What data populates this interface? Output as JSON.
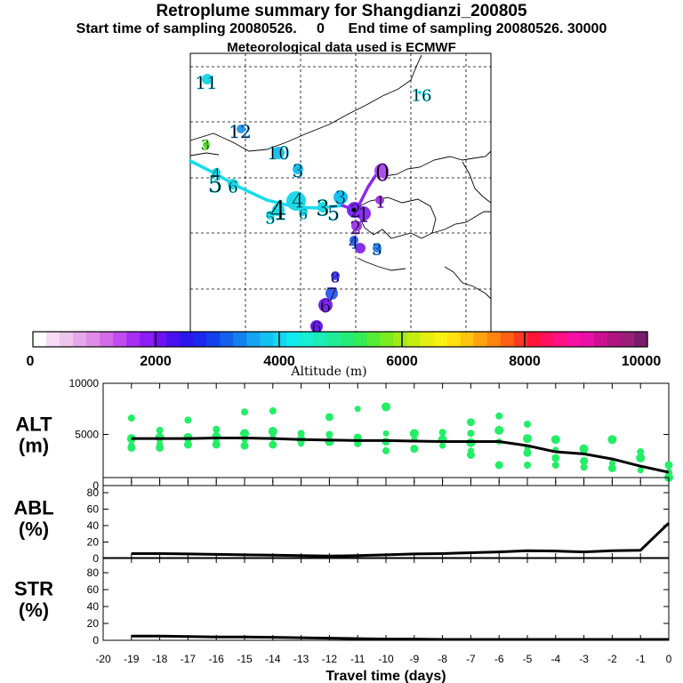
{
  "header": {
    "title": "Retroplume summary for Shangdianzi_200805",
    "sampling_line": "Start time of sampling 20080526.     0      End time of sampling 20080526. 30000",
    "met_line": "Meteorological data used is ECMWF"
  },
  "colorbar": {
    "ticks": [
      "0",
      "2000",
      "4000",
      "6000",
      "8000",
      "10000"
    ],
    "label": "Altitude (m)",
    "colors": [
      "#ffffff",
      "#f6dcf6",
      "#eec5ee",
      "#e6a8ec",
      "#df8de8",
      "#d36ce8",
      "#c24cef",
      "#a72ff2",
      "#8b1ef4",
      "#6e12f2",
      "#4a10ee",
      "#2c16ee",
      "#1a28f0",
      "#1440ec",
      "#1460ec",
      "#1480f0",
      "#14a4f2",
      "#14c2f2",
      "#12d8f0",
      "#10ecee",
      "#18eed4",
      "#1cecb8",
      "#20ec98",
      "#24ec78",
      "#34ec54",
      "#54ec34",
      "#7aec20",
      "#a0ec14",
      "#c4ee10",
      "#e4ee10",
      "#faf010",
      "#ffe010",
      "#ffc410",
      "#ffa410",
      "#ff8410",
      "#ff6014",
      "#ff3a20",
      "#ff1438",
      "#ff1060",
      "#ff1084",
      "#f610a4",
      "#e810a8",
      "#cc1090",
      "#b01480",
      "#981e78",
      "#7a1a6a"
    ]
  },
  "map": {
    "labels": [
      {
        "text": "11",
        "x": 232,
        "y": 93,
        "size": 20,
        "color": "#1ed8e8"
      },
      {
        "text": "16",
        "x": 474,
        "y": 107,
        "size": 18,
        "color": "#1ed8e8"
      },
      {
        "text": "12",
        "x": 270,
        "y": 148,
        "size": 20,
        "color": "#2a9af0"
      },
      {
        "text": "3",
        "x": 231,
        "y": 163,
        "size": 16,
        "color": "#5ae034"
      },
      {
        "text": "10",
        "x": 313,
        "y": 172,
        "size": 20,
        "color": "#18c2f0"
      },
      {
        "text": "3",
        "x": 335,
        "y": 192,
        "size": 20,
        "color": "#18c2f0"
      },
      {
        "text": "4",
        "x": 243,
        "y": 196,
        "size": 18,
        "color": "#1ed8e8"
      },
      {
        "text": "5",
        "x": 242,
        "y": 207,
        "size": 26,
        "color": "#1ed8e8"
      },
      {
        "text": "6",
        "x": 262,
        "y": 210,
        "size": 18,
        "color": "#1ed8e8"
      },
      {
        "text": "4",
        "x": 335,
        "y": 226,
        "size": 22,
        "color": "#1ed8e8"
      },
      {
        "text": "3",
        "x": 383,
        "y": 222,
        "size": 20,
        "color": "#18c2f0"
      },
      {
        "text": "4",
        "x": 313,
        "y": 237,
        "size": 30,
        "color": "#1ed8e8"
      },
      {
        "text": "5",
        "x": 304,
        "y": 245,
        "size": 18,
        "color": "#1ed8e8"
      },
      {
        "text": "6",
        "x": 341,
        "y": 241,
        "size": 16,
        "color": "#1ed8e8"
      },
      {
        "text": "3",
        "x": 363,
        "y": 234,
        "size": 24,
        "color": "#1ed8e8"
      },
      {
        "text": "5",
        "x": 375,
        "y": 240,
        "size": 22,
        "color": "#18c2f0"
      },
      {
        "text": "0",
        "x": 430,
        "y": 194,
        "size": 26,
        "color": "#b04cf0"
      },
      {
        "text": "1",
        "x": 428,
        "y": 227,
        "size": 18,
        "color": "#a638e8"
      },
      {
        "text": "2",
        "x": 400,
        "y": 237,
        "size": 20,
        "color": "#7a2af0"
      },
      {
        "text": "1",
        "x": 409,
        "y": 242,
        "size": 22,
        "color": "#8a30f0"
      },
      {
        "text": "2",
        "x": 400,
        "y": 256,
        "size": 20,
        "color": "#a040e8"
      },
      {
        "text": "4",
        "x": 398,
        "y": 273,
        "size": 18,
        "color": "#3060f0"
      },
      {
        "text": "3",
        "x": 424,
        "y": 280,
        "size": 18,
        "color": "#2a80f0"
      },
      {
        "text": "8",
        "x": 377,
        "y": 312,
        "size": 16,
        "color": "#4a40f0"
      },
      {
        "text": "7",
        "x": 373,
        "y": 331,
        "size": 20,
        "color": "#3a60f0"
      },
      {
        "text": "6",
        "x": 366,
        "y": 344,
        "size": 20,
        "color": "#7a24f0"
      },
      {
        "text": "6",
        "x": 356,
        "y": 368,
        "size": 18,
        "color": "#6a1cec"
      }
    ]
  },
  "chart_data": [
    {
      "type": "scatter",
      "panel": "ALT",
      "ylabel": "ALT\n(m)",
      "ylim": [
        0,
        10000
      ],
      "yticks": [
        "0",
        "5000",
        "10000"
      ],
      "xlim": [
        -20,
        0
      ],
      "series": [
        {
          "name": "median altitude",
          "type": "line",
          "x": [
            -19,
            -18,
            -17,
            -16,
            -15,
            -14,
            -13,
            -12,
            -11,
            -10,
            -9,
            -8,
            -7,
            -6,
            -5,
            -4,
            -3,
            -2,
            -1,
            0
          ],
          "y": [
            4600,
            4600,
            4600,
            4650,
            4650,
            4600,
            4500,
            4450,
            4400,
            4400,
            4350,
            4300,
            4300,
            4300,
            3900,
            3300,
            3100,
            2600,
            1900,
            1300
          ]
        },
        {
          "name": "cluster altitudes",
          "type": "scatter",
          "points": [
            [
              -19,
              6600
            ],
            [
              -19,
              4600
            ],
            [
              -19,
              4000
            ],
            [
              -19,
              3700
            ],
            [
              -18,
              5400
            ],
            [
              -18,
              4700
            ],
            [
              -18,
              4100
            ],
            [
              -18,
              3700
            ],
            [
              -17,
              6400
            ],
            [
              -17,
              4700
            ],
            [
              -17,
              4200
            ],
            [
              -17,
              4000
            ],
            [
              -16,
              5500
            ],
            [
              -16,
              4800
            ],
            [
              -16,
              4300
            ],
            [
              -16,
              4000
            ],
            [
              -15,
              7200
            ],
            [
              -15,
              5100
            ],
            [
              -15,
              4500
            ],
            [
              -15,
              3900
            ],
            [
              -14,
              7300
            ],
            [
              -14,
              5300
            ],
            [
              -14,
              4700
            ],
            [
              -14,
              4000
            ],
            [
              -13,
              5100
            ],
            [
              -13,
              4500
            ],
            [
              -13,
              4100
            ],
            [
              -12,
              6700
            ],
            [
              -12,
              5000
            ],
            [
              -12,
              4300
            ],
            [
              -11,
              7500
            ],
            [
              -11,
              4700
            ],
            [
              -11,
              4100
            ],
            [
              -10,
              7700
            ],
            [
              -10,
              5100
            ],
            [
              -10,
              4300
            ],
            [
              -10,
              3400
            ],
            [
              -9,
              5100
            ],
            [
              -9,
              4500
            ],
            [
              -9,
              3600
            ],
            [
              -8,
              5200
            ],
            [
              -8,
              4500
            ],
            [
              -8,
              3900
            ],
            [
              -7,
              6200
            ],
            [
              -7,
              5100
            ],
            [
              -7,
              4200
            ],
            [
              -7,
              3400
            ],
            [
              -7,
              3000
            ],
            [
              -6,
              6800
            ],
            [
              -6,
              5400
            ],
            [
              -6,
              4300
            ],
            [
              -6,
              2000
            ],
            [
              -5,
              6000
            ],
            [
              -5,
              4600
            ],
            [
              -5,
              3700
            ],
            [
              -5,
              3200
            ],
            [
              -5,
              2000
            ],
            [
              -4,
              4500
            ],
            [
              -4,
              3500
            ],
            [
              -4,
              2700
            ],
            [
              -4,
              2000
            ],
            [
              -3,
              3600
            ],
            [
              -3,
              3300
            ],
            [
              -3,
              2400
            ],
            [
              -3,
              1800
            ],
            [
              -2,
              4500
            ],
            [
              -2,
              2200
            ],
            [
              -2,
              1700
            ],
            [
              -1,
              3300
            ],
            [
              -1,
              2700
            ],
            [
              -1,
              1500
            ],
            [
              0,
              2000
            ],
            [
              0,
              1300
            ],
            [
              0,
              800
            ]
          ]
        }
      ]
    },
    {
      "type": "line",
      "panel": "ABL",
      "ylabel": "ABL\n(%)",
      "ylim": [
        0,
        80
      ],
      "yticks": [
        "0",
        "20",
        "40",
        "60",
        "80"
      ],
      "x": [
        -19,
        -18,
        -17,
        -16,
        -15,
        -14,
        -13,
        -12,
        -11,
        -10,
        -9,
        -8,
        -7,
        -6,
        -5,
        -4,
        -3,
        -2,
        -1,
        0
      ],
      "values": [
        6,
        6,
        5.5,
        5,
        4.5,
        4,
        3.5,
        3,
        3.5,
        4.5,
        5.5,
        6,
        7,
        8,
        9.5,
        9,
        8,
        9.5,
        10,
        43
      ]
    },
    {
      "type": "line",
      "panel": "STR",
      "ylabel": "STR\n(%)",
      "ylim": [
        0,
        80
      ],
      "yticks": [
        "0",
        "20",
        "40",
        "60",
        "80"
      ],
      "x": [
        -19,
        -18,
        -17,
        -16,
        -15,
        -14,
        -13,
        -12,
        -11,
        -10,
        -9,
        -8,
        -7,
        -6,
        -5,
        -4,
        -3,
        -2,
        -1,
        0
      ],
      "values": [
        5,
        5,
        4.5,
        4,
        4,
        3.5,
        3,
        2.5,
        2,
        1.5,
        1.5,
        1,
        1,
        1,
        1,
        1,
        1,
        1,
        1,
        1
      ],
      "xlabel": "Travel time (days)",
      "xticks": [
        "-20",
        "-19",
        "-18",
        "-17",
        "-16",
        "-15",
        "-14",
        "-13",
        "-12",
        "-11",
        "-10",
        "-9",
        "-8",
        "-7",
        "-6",
        "-5",
        "-4",
        "-3",
        "-2",
        "-1",
        "0"
      ]
    }
  ]
}
